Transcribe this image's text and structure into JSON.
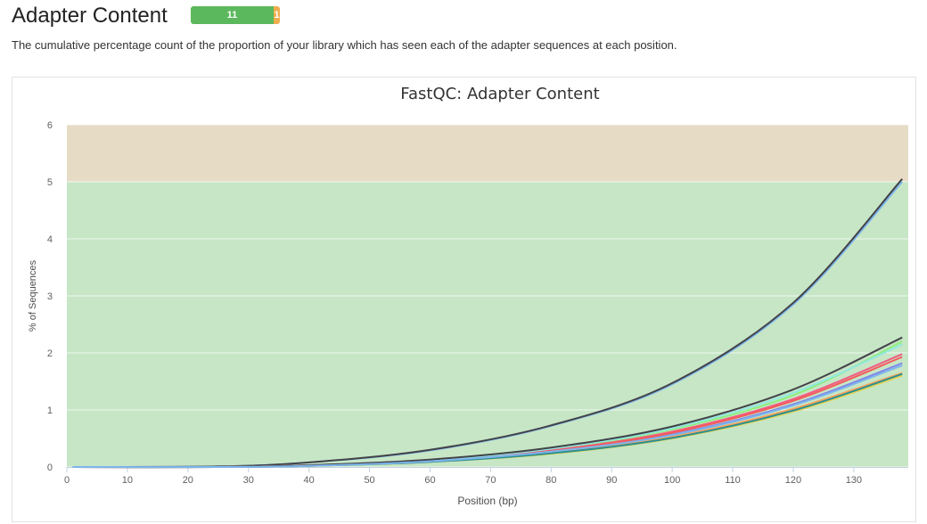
{
  "header": {
    "title": "Adapter Content"
  },
  "status": {
    "pass_count": "11",
    "warn_count": "1",
    "pass_color": "#5cb85c",
    "warn_color": "#f0ad4e"
  },
  "description": "The cumulative percentage count of the proportion of your library which has seen each of the adapter sequences at each position.",
  "chart_data": {
    "type": "line",
    "title": "FastQC: Adapter Content",
    "xlabel": "Position (bp)",
    "ylabel": "% of Sequences",
    "xlim": [
      0,
      139
    ],
    "ylim": [
      0,
      6
    ],
    "xticks": [
      0,
      10,
      20,
      30,
      40,
      50,
      60,
      70,
      80,
      90,
      100,
      110,
      120,
      130
    ],
    "yticks": [
      0,
      1,
      2,
      3,
      4,
      5,
      6
    ],
    "bands": [
      {
        "from": 0,
        "to": 5,
        "color": "#c6e6c6",
        "meaning": "pass"
      },
      {
        "from": 5,
        "to": 6,
        "color": "#e6dcc6",
        "meaning": "warn"
      }
    ],
    "grid": true,
    "legend": "none",
    "series": [
      {
        "color": "#7cb5ec",
        "x": [
          1,
          25,
          40,
          60,
          80,
          100,
          120,
          138
        ],
        "y": [
          0,
          0.01,
          0.08,
          0.29,
          0.72,
          1.45,
          2.85,
          5.0
        ]
      },
      {
        "color": "#434348",
        "x": [
          1,
          25,
          40,
          60,
          80,
          100,
          120,
          138
        ],
        "y": [
          0,
          0.01,
          0.08,
          0.3,
          0.73,
          1.47,
          2.88,
          5.05
        ]
      },
      {
        "color": "#90ed7d",
        "x": [
          1,
          25,
          40,
          60,
          80,
          100,
          120,
          138
        ],
        "y": [
          0,
          0.0,
          0.03,
          0.11,
          0.31,
          0.66,
          1.26,
          2.2
        ]
      },
      {
        "color": "#f7a35c",
        "x": [
          1,
          25,
          40,
          60,
          80,
          100,
          120,
          138
        ],
        "y": [
          0,
          0.0,
          0.02,
          0.09,
          0.24,
          0.53,
          1.02,
          1.65
        ]
      },
      {
        "color": "#8085e9",
        "x": [
          1,
          25,
          40,
          60,
          80,
          100,
          120,
          138
        ],
        "y": [
          0,
          0.0,
          0.02,
          0.1,
          0.27,
          0.57,
          1.1,
          1.82
        ]
      },
      {
        "color": "#f15c80",
        "x": [
          1,
          25,
          40,
          60,
          80,
          100,
          120,
          138
        ],
        "y": [
          0,
          0.0,
          0.03,
          0.11,
          0.29,
          0.62,
          1.19,
          1.98
        ]
      },
      {
        "color": "#e4d354",
        "x": [
          1,
          25,
          40,
          60,
          80,
          100,
          120,
          138
        ],
        "y": [
          0,
          0.0,
          0.02,
          0.09,
          0.23,
          0.5,
          0.97,
          1.6
        ]
      },
      {
        "color": "#2b908f",
        "x": [
          1,
          25,
          40,
          60,
          80,
          100,
          120,
          138
        ],
        "y": [
          0,
          0.0,
          0.02,
          0.09,
          0.24,
          0.51,
          0.99,
          1.63
        ]
      },
      {
        "color": "#f45b5b",
        "x": [
          1,
          25,
          40,
          60,
          80,
          100,
          120,
          138
        ],
        "y": [
          0,
          0.0,
          0.03,
          0.11,
          0.28,
          0.6,
          1.16,
          1.93
        ]
      },
      {
        "color": "#91e8e1",
        "x": [
          1,
          25,
          40,
          60,
          80,
          100,
          120,
          138
        ],
        "y": [
          0,
          0.0,
          0.03,
          0.12,
          0.32,
          0.68,
          1.3,
          2.15
        ]
      },
      {
        "color": "#434348",
        "x": [
          1,
          25,
          40,
          60,
          80,
          100,
          120,
          138
        ],
        "y": [
          0,
          0.0,
          0.03,
          0.13,
          0.34,
          0.71,
          1.36,
          2.27
        ]
      },
      {
        "color": "#7cb5ec",
        "x": [
          1,
          25,
          40,
          60,
          80,
          100,
          120,
          138
        ],
        "y": [
          0,
          0.0,
          0.02,
          0.1,
          0.27,
          0.56,
          1.08,
          1.78
        ]
      }
    ]
  }
}
